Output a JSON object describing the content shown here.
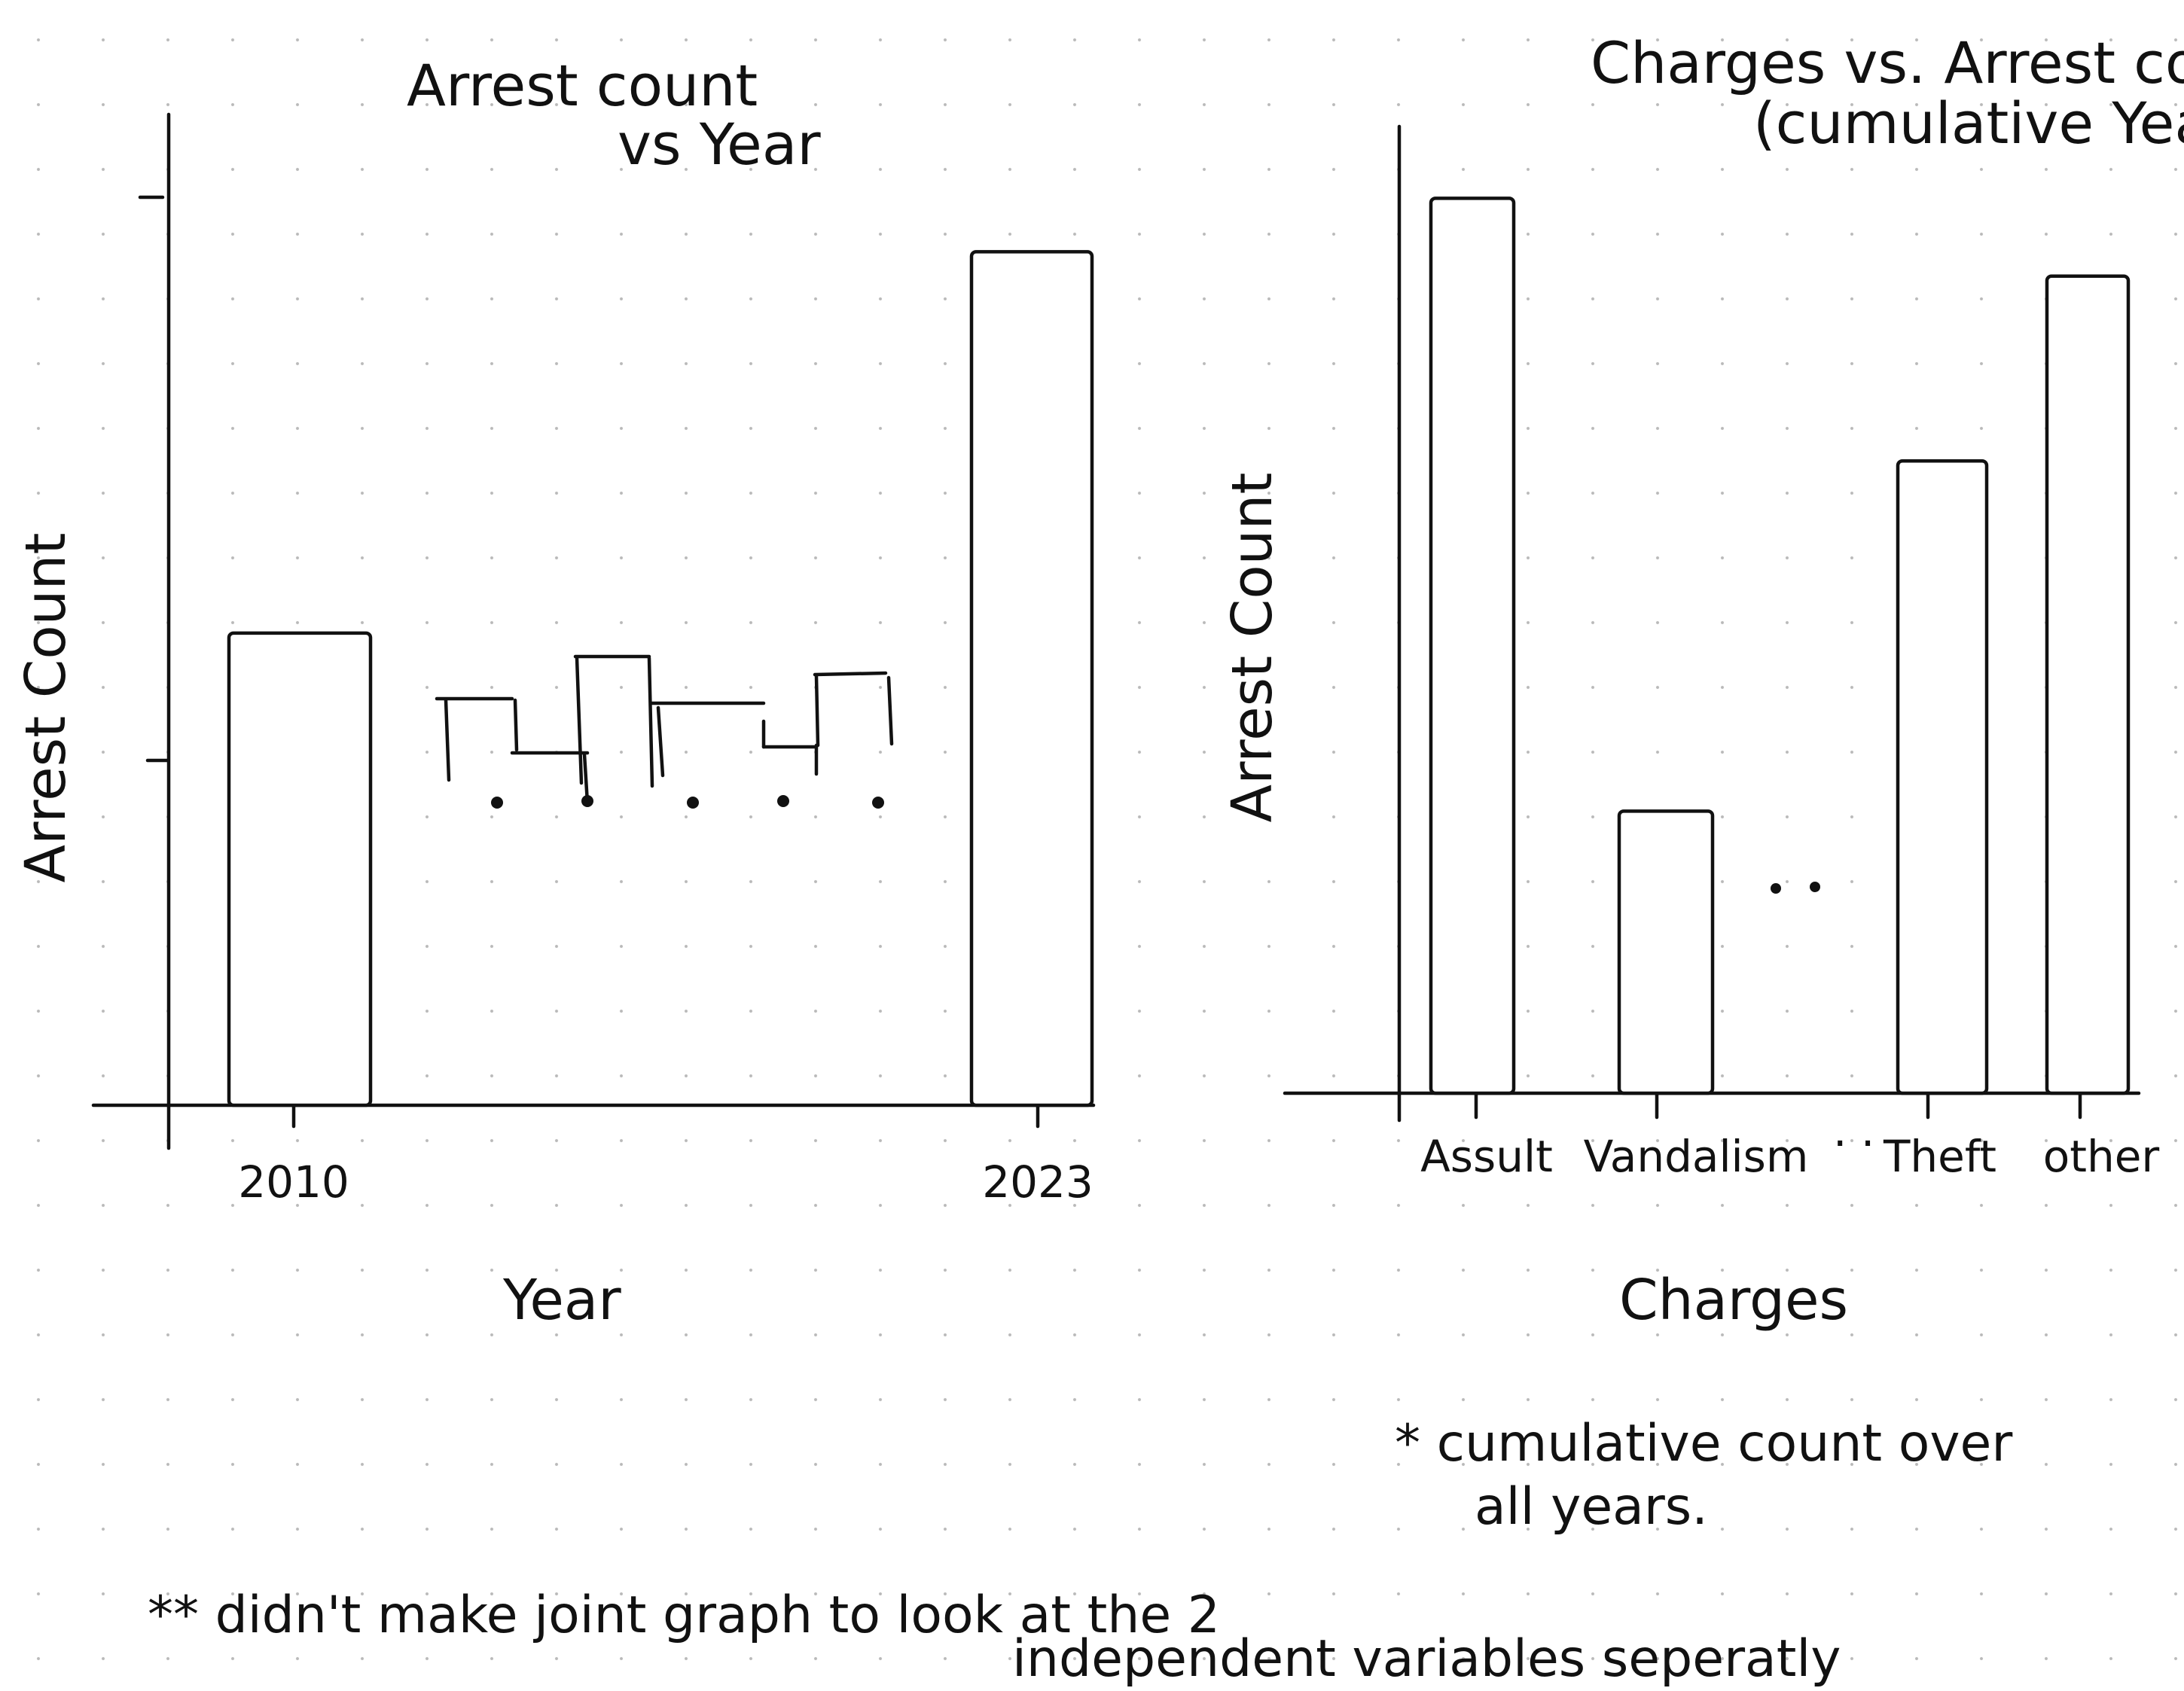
{
  "chart_data": [
    {
      "type": "bar",
      "title_lines": [
        "Arrest count",
        "vs Year"
      ],
      "xlabel": "Year",
      "ylabel": "Arrest Count",
      "categories": [
        "2010",
        "2023"
      ],
      "values": [
        0.52,
        0.94
      ],
      "ylim": [
        0,
        1
      ],
      "grid": false,
      "legend": "none",
      "continuation_steps": [
        0.58,
        0.5,
        0.64,
        0.56,
        0.62
      ],
      "continuation_dots": 5
    },
    {
      "type": "bar",
      "title_lines": [
        "Charges vs. Arrest count",
        "(cumulative Years)"
      ],
      "xlabel": "Charges",
      "ylabel": "Arrest Count",
      "categories": [
        "Assult",
        "Vandalism",
        "Theft",
        "other"
      ],
      "values": [
        0.92,
        0.29,
        0.65,
        0.84
      ],
      "ylim": [
        0,
        1
      ],
      "grid": false,
      "legend": "none",
      "ellipsis_label": ". ."
    }
  ],
  "notes": {
    "cumulative_lines": [
      "* cumulative count over",
      "all years."
    ],
    "joint_lines": [
      "** didn't make joint graph to look at the 2",
      "independent variables seperatly"
    ]
  },
  "colors": {
    "ink": "#111111",
    "dot_grid": "#b9b9b9",
    "paper": "#ffffff"
  }
}
